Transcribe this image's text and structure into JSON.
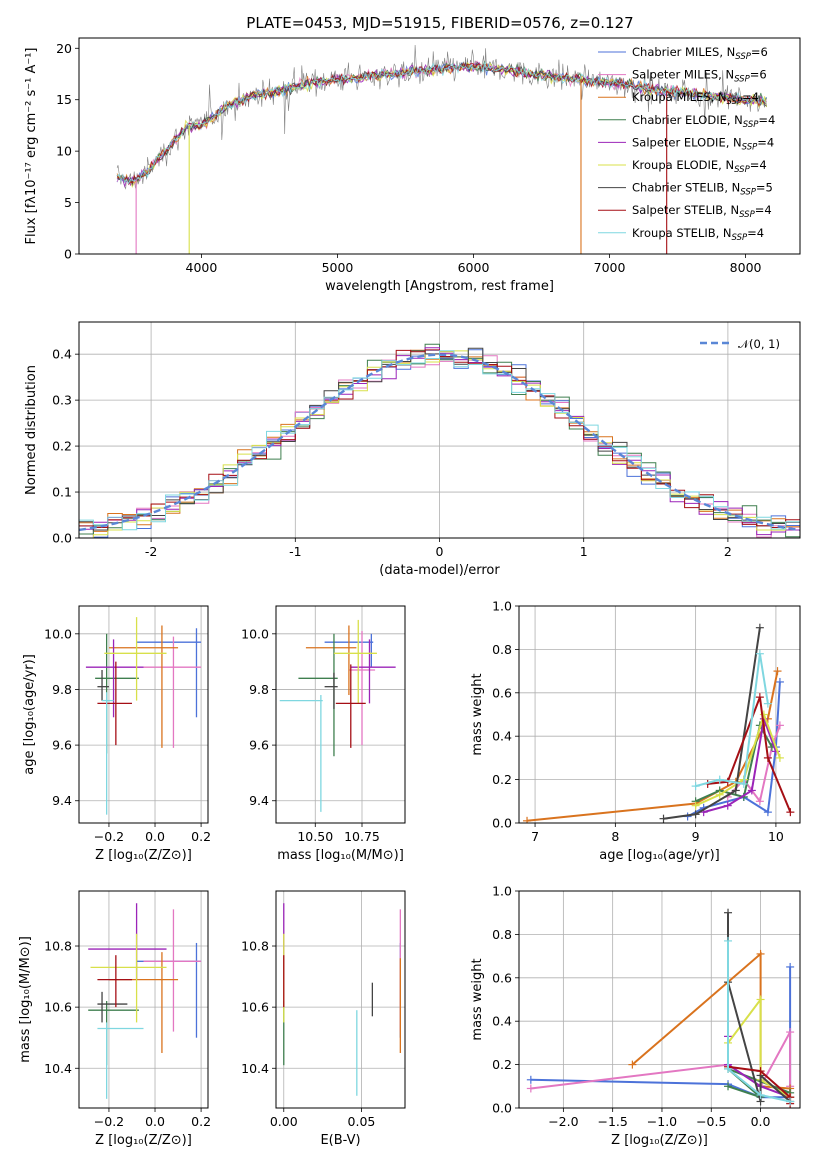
{
  "figure": {
    "title": "PLATE=0453, MJD=51915, FIBERID=0576, z=0.127"
  },
  "colors": {
    "blue": "#4c72d9",
    "magenta": "#e377c2",
    "orange": "#d9731e",
    "green": "#3f7f4f",
    "purple": "#9b24b8",
    "yellow": "#d8e04a",
    "dark": "#444444",
    "red": "#a50f15",
    "cyan": "#7fd7e0",
    "observed": "#808080"
  },
  "chart_data": [
    {
      "id": "spectrum",
      "type": "line",
      "xlabel": "wavelength [Angstrom, rest frame]",
      "ylabel": "Flux [fλ10⁻¹⁷ erg cm⁻² s⁻¹ A⁻¹]",
      "xlim": [
        3100,
        8400
      ],
      "ylim": [
        0,
        21
      ],
      "xticks": [
        4000,
        5000,
        6000,
        7000,
        8000
      ],
      "yticks": [
        0,
        5,
        10,
        15,
        20
      ],
      "grid": false,
      "legend_position": "top-right",
      "continuum": {
        "x": [
          3380,
          3500,
          3600,
          3700,
          3800,
          3900,
          4000,
          4100,
          4200,
          4300,
          4400,
          4500,
          4600,
          4700,
          4800,
          4900,
          5000,
          5200,
          5400,
          5600,
          5800,
          6000,
          6200,
          6400,
          6600,
          6800,
          7000,
          7200,
          7400,
          7600,
          7800,
          8000,
          8160
        ],
        "y": [
          7.5,
          7.0,
          8.0,
          9.5,
          11.0,
          12.5,
          12.5,
          13.5,
          14.5,
          15.0,
          15.5,
          15.7,
          16.0,
          16.3,
          16.6,
          16.8,
          17.0,
          17.2,
          17.5,
          17.8,
          18.0,
          18.3,
          18.0,
          17.6,
          17.2,
          17.0,
          16.6,
          16.3,
          15.9,
          15.6,
          15.3,
          15.0,
          14.8
        ]
      },
      "drops": [
        {
          "series": "Salpeter MILES",
          "x": 3520
        },
        {
          "series": "Kroupa ELODIE",
          "x": 3910
        },
        {
          "series": "Kroupa MILES",
          "x": 6790
        },
        {
          "series": "Salpeter STELIB",
          "x": 7420
        }
      ],
      "series": [
        {
          "name": "Chabrier MILES, N",
          "sub": "SSP",
          "tail": "=6",
          "color": "blue"
        },
        {
          "name": "Salpeter MILES, N",
          "sub": "SSP",
          "tail": "=6",
          "color": "magenta"
        },
        {
          "name": "Kroupa MILES, N",
          "sub": "SSP",
          "tail": "=4",
          "color": "orange"
        },
        {
          "name": "Chabrier ELODIE, N",
          "sub": "SSP",
          "tail": "=4",
          "color": "green"
        },
        {
          "name": "Salpeter ELODIE, N",
          "sub": "SSP",
          "tail": "=4",
          "color": "purple"
        },
        {
          "name": "Kroupa ELODIE, N",
          "sub": "SSP",
          "tail": "=4",
          "color": "yellow"
        },
        {
          "name": "Chabrier STELIB, N",
          "sub": "SSP",
          "tail": "=5",
          "color": "dark"
        },
        {
          "name": "Salpeter STELIB, N",
          "sub": "SSP",
          "tail": "=4",
          "color": "red"
        },
        {
          "name": "Kroupa STELIB, N",
          "sub": "SSP",
          "tail": "=4",
          "color": "cyan"
        }
      ]
    },
    {
      "id": "residuals",
      "type": "line",
      "xlabel": "(data-model)/error",
      "ylabel": "Normed distribution",
      "xlim": [
        -2.5,
        2.5
      ],
      "ylim": [
        0,
        0.47
      ],
      "xticks": [
        -2,
        -1,
        0,
        1,
        2
      ],
      "yticks": [
        0.0,
        0.1,
        0.2,
        0.3,
        0.4
      ],
      "grid": true,
      "legend_position": "top-right",
      "legend": "𝒩(0, 1)",
      "bin_width": 0.1,
      "series_colors": [
        "blue",
        "magenta",
        "orange",
        "green",
        "purple",
        "yellow",
        "dark",
        "red",
        "cyan"
      ]
    },
    {
      "id": "age_Z",
      "type": "scatter",
      "xlabel": "Z [log₁₀(Z/Z⊙)]",
      "ylabel": "age  [log₁₀(age/yr)]",
      "xlim": [
        -0.33,
        0.23
      ],
      "ylim": [
        9.32,
        10.1
      ],
      "xticks": [
        -0.2,
        0.0,
        0.2
      ],
      "xtick_labels": [
        "−0.2",
        "0.0",
        "0.2"
      ],
      "yticks": [
        9.4,
        9.6,
        9.8,
        10.0
      ],
      "grid": true,
      "points": [
        {
          "color": "blue",
          "x": 0.18,
          "xlo": -0.08,
          "xhi": 0.2,
          "y": 9.97,
          "ylo": 9.7,
          "yhi": 10.02
        },
        {
          "color": "magenta",
          "x": 0.08,
          "xlo": -0.05,
          "xhi": 0.2,
          "y": 9.88,
          "ylo": 9.59,
          "yhi": 9.99
        },
        {
          "color": "orange",
          "x": 0.03,
          "xlo": -0.2,
          "xhi": 0.1,
          "y": 9.95,
          "ylo": 9.59,
          "yhi": 10.03
        },
        {
          "color": "green",
          "x": -0.21,
          "xlo": -0.26,
          "xhi": -0.07,
          "y": 9.84,
          "ylo": 9.57,
          "yhi": 10.0
        },
        {
          "color": "purple",
          "x": -0.18,
          "xlo": -0.3,
          "xhi": -0.05,
          "y": 9.88,
          "ylo": 9.7,
          "yhi": 9.98
        },
        {
          "color": "yellow",
          "x": -0.08,
          "xlo": -0.22,
          "xhi": 0.05,
          "y": 9.93,
          "ylo": 9.76,
          "yhi": 10.06
        },
        {
          "color": "dark",
          "x": -0.23,
          "xlo": -0.25,
          "xhi": -0.2,
          "y": 9.81,
          "ylo": 9.76,
          "yhi": 9.87
        },
        {
          "color": "red",
          "x": -0.17,
          "xlo": -0.25,
          "xhi": -0.1,
          "y": 9.75,
          "ylo": 9.6,
          "yhi": 9.9
        },
        {
          "color": "cyan",
          "x": -0.21,
          "xlo": -0.23,
          "xhi": -0.18,
          "y": 9.76,
          "ylo": 9.35,
          "yhi": 9.79
        }
      ]
    },
    {
      "id": "age_mass",
      "type": "scatter",
      "xlabel": "mass [log₁₀(M/M⊙)]",
      "xlim": [
        10.29,
        10.98
      ],
      "ylim": [
        9.32,
        10.1
      ],
      "xticks": [
        10.5,
        10.75
      ],
      "xtick_labels": [
        "10.50",
        "10.75"
      ],
      "yticks": [
        9.4,
        9.6,
        9.8,
        10.0
      ],
      "grid": true,
      "points": [
        {
          "color": "blue",
          "x": 10.8,
          "xlo": 10.55,
          "xhi": 10.81,
          "y": 9.97,
          "ylo": 9.88,
          "yhi": 10.0
        },
        {
          "color": "magenta",
          "x": 10.75,
          "xlo": 10.68,
          "xhi": 10.82,
          "y": 9.87,
          "ylo": 9.6,
          "yhi": 10.01
        },
        {
          "color": "orange",
          "x": 10.68,
          "xlo": 10.45,
          "xhi": 10.72,
          "y": 9.95,
          "ylo": 9.78,
          "yhi": 10.03
        },
        {
          "color": "green",
          "x": 10.6,
          "xlo": 10.41,
          "xhi": 10.62,
          "y": 9.84,
          "ylo": 9.56,
          "yhi": 10.0
        },
        {
          "color": "purple",
          "x": 10.79,
          "xlo": 10.69,
          "xhi": 10.93,
          "y": 9.88,
          "ylo": 9.75,
          "yhi": 9.98
        },
        {
          "color": "yellow",
          "x": 10.73,
          "xlo": 10.6,
          "xhi": 10.83,
          "y": 9.93,
          "ylo": 9.75,
          "yhi": 10.05
        },
        {
          "color": "dark",
          "x": 10.6,
          "xlo": 10.55,
          "xhi": 10.62,
          "y": 9.81,
          "ylo": 9.73,
          "yhi": 9.86
        },
        {
          "color": "red",
          "x": 10.69,
          "xlo": 10.61,
          "xhi": 10.77,
          "y": 9.75,
          "ylo": 9.59,
          "yhi": 9.89
        },
        {
          "color": "cyan",
          "x": 10.53,
          "xlo": 10.31,
          "xhi": 10.54,
          "y": 9.76,
          "ylo": 9.36,
          "yhi": 9.78
        }
      ]
    },
    {
      "id": "weights_age",
      "type": "line",
      "xlabel": "age  [log₁₀(age/yr)]",
      "ylabel": "mass weight",
      "xlim": [
        6.8,
        10.3
      ],
      "ylim": [
        0,
        1.0
      ],
      "xticks": [
        7,
        8,
        9,
        10
      ],
      "yticks": [
        0.0,
        0.2,
        0.4,
        0.6,
        0.8,
        1.0
      ],
      "grid": true,
      "series": [
        {
          "color": "blue",
          "x": [
            8.9,
            9.1,
            9.6,
            9.9,
            10.0,
            10.05
          ],
          "y": [
            0.03,
            0.07,
            0.12,
            0.05,
            0.35,
            0.65
          ]
        },
        {
          "color": "magenta",
          "x": [
            9.4,
            9.6,
            9.8,
            9.95,
            10.05
          ],
          "y": [
            0.12,
            0.2,
            0.1,
            0.35,
            0.45
          ]
        },
        {
          "color": "orange",
          "x": [
            6.9,
            9.0,
            9.5,
            9.9,
            10.02
          ],
          "y": [
            0.01,
            0.09,
            0.19,
            0.48,
            0.7
          ]
        },
        {
          "color": "green",
          "x": [
            9.0,
            9.3,
            9.6,
            9.8,
            9.95
          ],
          "y": [
            0.1,
            0.15,
            0.12,
            0.45,
            0.35
          ]
        },
        {
          "color": "purple",
          "x": [
            9.1,
            9.4,
            9.7,
            9.85,
            10.0
          ],
          "y": [
            0.05,
            0.08,
            0.15,
            0.48,
            0.33
          ]
        },
        {
          "color": "yellow",
          "x": [
            9.0,
            9.3,
            9.6,
            9.85,
            10.05
          ],
          "y": [
            0.08,
            0.13,
            0.2,
            0.5,
            0.3
          ]
        },
        {
          "color": "dark",
          "x": [
            8.6,
            9.0,
            9.5,
            9.8
          ],
          "y": [
            0.02,
            0.04,
            0.15,
            0.9
          ]
        },
        {
          "color": "red",
          "x": [
            9.15,
            9.4,
            9.8,
            9.9,
            10.18
          ],
          "y": [
            0.18,
            0.19,
            0.58,
            0.3,
            0.05
          ]
        },
        {
          "color": "cyan",
          "x": [
            9.0,
            9.3,
            9.6,
            9.8,
            9.9
          ],
          "y": [
            0.17,
            0.2,
            0.18,
            0.78,
            0.55
          ]
        }
      ]
    },
    {
      "id": "mass_Z",
      "type": "scatter",
      "xlabel": "Z [log₁₀(Z/Z⊙)]",
      "ylabel": "mass [log₁₀(M/M⊙)]",
      "xlim": [
        -0.33,
        0.23
      ],
      "ylim": [
        10.27,
        10.98
      ],
      "xticks": [
        -0.2,
        0.0,
        0.2
      ],
      "xtick_labels": [
        "−0.2",
        "0.0",
        "0.2"
      ],
      "yticks": [
        10.4,
        10.6,
        10.8
      ],
      "grid": true,
      "points": [
        {
          "color": "blue",
          "x": 0.18,
          "xlo": -0.08,
          "xhi": 0.2,
          "y": 10.75,
          "ylo": 10.5,
          "yhi": 10.81
        },
        {
          "color": "magenta",
          "x": 0.08,
          "xlo": -0.05,
          "xhi": 0.2,
          "y": 10.75,
          "ylo": 10.52,
          "yhi": 10.92
        },
        {
          "color": "orange",
          "x": 0.03,
          "xlo": -0.2,
          "xhi": 0.1,
          "y": 10.69,
          "ylo": 10.45,
          "yhi": 10.78
        },
        {
          "color": "green",
          "x": -0.21,
          "xlo": -0.29,
          "xhi": -0.07,
          "y": 10.59,
          "ylo": 10.41,
          "yhi": 10.62
        },
        {
          "color": "purple",
          "x": -0.08,
          "xlo": -0.29,
          "xhi": 0.05,
          "y": 10.79,
          "ylo": 10.69,
          "yhi": 10.94
        },
        {
          "color": "yellow",
          "x": -0.08,
          "xlo": -0.28,
          "xhi": 0.05,
          "y": 10.73,
          "ylo": 10.55,
          "yhi": 10.84
        },
        {
          "color": "dark",
          "x": -0.23,
          "xlo": -0.25,
          "xhi": -0.12,
          "y": 10.61,
          "ylo": 10.55,
          "yhi": 10.65
        },
        {
          "color": "red",
          "x": -0.17,
          "xlo": -0.25,
          "xhi": -0.1,
          "y": 10.69,
          "ylo": 10.6,
          "yhi": 10.77
        },
        {
          "color": "cyan",
          "x": -0.21,
          "xlo": -0.25,
          "xhi": -0.05,
          "y": 10.53,
          "ylo": 10.3,
          "yhi": 10.55
        }
      ]
    },
    {
      "id": "mass_ebv",
      "type": "scatter",
      "xlabel": "E(B-V)",
      "xlim": [
        -0.005,
        0.078
      ],
      "ylim": [
        10.27,
        10.98
      ],
      "xticks": [
        0.0,
        0.05
      ],
      "xtick_labels": [
        "0.00",
        "0.05"
      ],
      "yticks": [
        10.4,
        10.6,
        10.8
      ],
      "grid": true,
      "points": [
        {
          "color": "blue",
          "x": 0.075,
          "y": 10.75,
          "ylo": 10.5,
          "yhi": 10.81
        },
        {
          "color": "magenta",
          "x": 0.075,
          "y": 10.75,
          "ylo": 10.52,
          "yhi": 10.92
        },
        {
          "color": "orange",
          "x": 0.075,
          "y": 10.69,
          "ylo": 10.45,
          "yhi": 10.76
        },
        {
          "color": "green",
          "x": 0.0,
          "y": 10.59,
          "ylo": 10.41,
          "yhi": 10.62
        },
        {
          "color": "purple",
          "x": 0.0,
          "y": 10.79,
          "ylo": 10.69,
          "yhi": 10.94
        },
        {
          "color": "yellow",
          "x": 0.0,
          "y": 10.73,
          "ylo": 10.55,
          "yhi": 10.84
        },
        {
          "color": "dark",
          "x": 0.057,
          "y": 10.61,
          "ylo": 10.57,
          "yhi": 10.68
        },
        {
          "color": "red",
          "x": 0.0,
          "y": 10.69,
          "ylo": 10.6,
          "yhi": 10.77
        },
        {
          "color": "cyan",
          "x": 0.047,
          "y": 10.53,
          "ylo": 10.31,
          "yhi": 10.59
        }
      ]
    },
    {
      "id": "weights_Z",
      "type": "line",
      "xlabel": "Z [log₁₀(Z/Z⊙)]",
      "ylabel": "mass weight",
      "xlim": [
        -2.45,
        0.4
      ],
      "ylim": [
        0,
        1.0
      ],
      "xticks": [
        -2.0,
        -1.5,
        -1.0,
        -0.5,
        0.0
      ],
      "xtick_labels": [
        "−2.0",
        "−1.5",
        "−1.0",
        "−0.5",
        "0.0"
      ],
      "yticks": [
        0.0,
        0.2,
        0.4,
        0.6,
        0.8,
        1.0
      ],
      "grid": true,
      "series": [
        {
          "color": "blue",
          "x": [
            -2.33,
            -0.33,
            0.0,
            0.3,
            0.3
          ],
          "y": [
            0.13,
            0.11,
            0.05,
            0.05,
            0.65
          ]
        },
        {
          "color": "magenta",
          "x": [
            -2.33,
            -0.33,
            0.0,
            0.3,
            0.3
          ],
          "y": [
            0.09,
            0.2,
            0.1,
            0.35,
            0.1
          ]
        },
        {
          "color": "orange",
          "x": [
            -1.3,
            0.0,
            0.0,
            0.3,
            0.3
          ],
          "y": [
            0.2,
            0.71,
            0.1,
            0.09,
            0.05
          ]
        },
        {
          "color": "green",
          "x": [
            -0.33,
            0.0,
            -0.33,
            0.3
          ],
          "y": [
            0.1,
            0.05,
            0.18,
            0.07
          ]
        },
        {
          "color": "purple",
          "x": [
            -0.33,
            -0.33,
            0.0,
            0.3
          ],
          "y": [
            0.33,
            0.2,
            0.1,
            0.05
          ]
        },
        {
          "color": "yellow",
          "x": [
            -0.33,
            0.0,
            0.0,
            0.3
          ],
          "y": [
            0.3,
            0.5,
            0.13,
            0.05
          ]
        },
        {
          "color": "dark",
          "x": [
            -0.33,
            -0.33,
            0.0,
            0.0,
            0.3
          ],
          "y": [
            0.9,
            0.58,
            0.03,
            0.15,
            0.03
          ]
        },
        {
          "color": "red",
          "x": [
            -0.33,
            0.0,
            0.3,
            0.3
          ],
          "y": [
            0.19,
            0.17,
            0.05,
            0.02
          ]
        },
        {
          "color": "cyan",
          "x": [
            -0.33,
            -0.33,
            0.0,
            0.3
          ],
          "y": [
            0.77,
            0.18,
            0.06,
            0.03
          ]
        }
      ]
    }
  ]
}
